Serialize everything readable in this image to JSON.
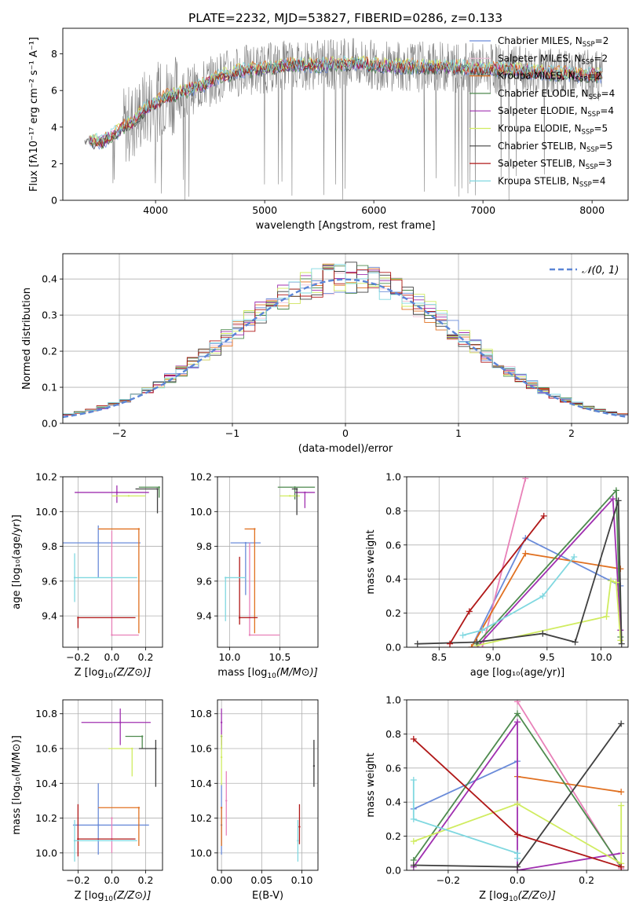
{
  "figure_title": "PLATE=2232, MJD=53827, FIBERID=0286, z=0.133",
  "colors": {
    "chabrier_miles": "#6a8bd9",
    "salpeter_miles": "#f0c1d8",
    "kroupa_miles": "#e07020",
    "chabrier_elodie": "#4e8a4e",
    "salpeter_elodie": "#a030b0",
    "kroupa_elodie": "#d0ec60",
    "chabrier_stelib": "#404040",
    "salpeter_stelib": "#b01818",
    "kroupa_stelib": "#80d8e0",
    "pink": "#e880b8",
    "gaussian": "#5b85d6",
    "data": "#808080"
  },
  "chart_data": [
    {
      "id": "spectrum",
      "type": "line",
      "title": "PLATE=2232, MJD=53827, FIBERID=0286, z=0.133",
      "xlabel": "wavelength [Angstrom, rest frame]",
      "ylabel": "Flux [fλ10⁻¹⁷ erg cm⁻² s⁻¹ A⁻¹]",
      "xlim": [
        3150,
        8330
      ],
      "ylim": [
        0,
        9.4
      ],
      "xticks": [
        4000,
        5000,
        6000,
        7000,
        8000
      ],
      "yticks": [
        0,
        2,
        4,
        6,
        8
      ],
      "grid": false,
      "legend_position": "right",
      "legend": [
        {
          "label": "Chabrier MILES, N",
          "sub": "SSP",
          "eq": "=2",
          "color": "#6a8bd9"
        },
        {
          "label": "Salpeter MILES, N",
          "sub": "SSP",
          "eq": "=2",
          "color": "#f0c1d8"
        },
        {
          "label": "Kroupa MILES, N",
          "sub": "SSP",
          "eq": "=2",
          "color": "#e07020"
        },
        {
          "label": "Chabrier ELODIE, N",
          "sub": "SSP",
          "eq": "=4",
          "color": "#4e8a4e"
        },
        {
          "label": "Salpeter ELODIE, N",
          "sub": "SSP",
          "eq": "=4",
          "color": "#a030b0"
        },
        {
          "label": "Kroupa ELODIE, N",
          "sub": "SSP",
          "eq": "=5",
          "color": "#d0ec60"
        },
        {
          "label": "Chabrier STELIB, N",
          "sub": "SSP",
          "eq": "=5",
          "color": "#404040"
        },
        {
          "label": "Salpeter STELIB, N",
          "sub": "SSP",
          "eq": "=3",
          "color": "#b01818"
        },
        {
          "label": "Kroupa STELIB, N",
          "sub": "SSP",
          "eq": "=4",
          "color": "#80d8e0"
        }
      ],
      "model_continuum": {
        "x": [
          3350,
          3500,
          3600,
          3700,
          3800,
          3900,
          4000,
          4100,
          4200,
          4300,
          4400,
          4500,
          4600,
          4800,
          5000,
          5200,
          5500,
          5800,
          6000,
          6300,
          6600,
          7000,
          7300,
          7500,
          7800,
          8000,
          8100
        ],
        "y": [
          3.3,
          3.2,
          3.5,
          4.0,
          4.3,
          5.0,
          5.3,
          5.7,
          5.8,
          6.0,
          6.2,
          6.5,
          6.8,
          7.1,
          7.2,
          7.4,
          7.4,
          7.5,
          7.4,
          7.3,
          7.3,
          7.2,
          7.1,
          7.0,
          6.9,
          6.85,
          6.8
        ]
      },
      "data_range": [
        3350,
        8100
      ]
    },
    {
      "id": "residuals",
      "type": "step",
      "xlabel": "(data-model)/error",
      "ylabel": "Normed distribution",
      "xlim": [
        -2.5,
        2.5
      ],
      "ylim": [
        0,
        0.47
      ],
      "xticks": [
        -2,
        -1,
        0,
        1,
        2
      ],
      "yticks": [
        0.0,
        0.1,
        0.2,
        0.3,
        0.4
      ],
      "grid": true,
      "legend_position": "top-right",
      "legend": [
        {
          "label": "𝒩(0, 1)",
          "style": "dashed",
          "color": "#5b85d6"
        }
      ],
      "bin_width": 0.1
    },
    {
      "id": "age_vs_z",
      "type": "errorbar",
      "xlabel_main": "Z [log",
      "xlabel_sub": "10",
      "xlabel_rest": "(Z/Z⊙)]",
      "ylabel": "age  [log₁₀(age/yr)]",
      "xlim": [
        -0.29,
        0.3
      ],
      "ylim": [
        9.22,
        10.2
      ],
      "xticks": [
        -0.2,
        0.0,
        0.2
      ],
      "yticks": [
        9.4,
        9.6,
        9.8,
        10.0,
        10.2
      ],
      "grid": true,
      "points": [
        {
          "color": "#6a8bd9",
          "x": -0.08,
          "xerr": [
            0.25,
            0.25
          ],
          "y": 9.82,
          "yerr": [
            0.2,
            0.1
          ]
        },
        {
          "color": "#e07020",
          "x": 0.16,
          "xerr": [
            0.24,
            0.0
          ],
          "y": 9.9,
          "yerr": [
            0.6,
            0.0
          ]
        },
        {
          "color": "#e880b8",
          "x": 0.0,
          "xerr": [
            0.0,
            0.16
          ],
          "y": 9.29,
          "yerr": [
            0.0,
            0.6
          ]
        },
        {
          "color": "#4e8a4e",
          "x": 0.28,
          "xerr": [
            0.12,
            0.0
          ],
          "y": 10.14,
          "yerr": [
            0.06,
            0.0
          ]
        },
        {
          "color": "#a030b0",
          "x": 0.03,
          "xerr": [
            0.25,
            0.19
          ],
          "y": 10.11,
          "yerr": [
            0.06,
            0.04
          ]
        },
        {
          "color": "#d0ec60",
          "x": 0.1,
          "xerr": [
            0.1,
            0.1
          ],
          "y": 10.09,
          "yerr": [
            0.0,
            0.0
          ]
        },
        {
          "color": "#404040",
          "x": 0.27,
          "xerr": [
            0.13,
            0.0
          ],
          "y": 10.13,
          "yerr": [
            0.14,
            0.0
          ]
        },
        {
          "color": "#b01818",
          "x": -0.2,
          "xerr": [
            0.0,
            0.34
          ],
          "y": 9.39,
          "yerr": [
            0.06,
            0.0
          ]
        },
        {
          "color": "#80d8e0",
          "x": -0.22,
          "xerr": [
            0.0,
            0.37
          ],
          "y": 9.62,
          "yerr": [
            0.14,
            0.14
          ]
        }
      ]
    },
    {
      "id": "age_vs_mass",
      "type": "errorbar",
      "xlabel_main": "mass [log",
      "xlabel_sub": "10",
      "xlabel_rest": "(M/M⊙)]",
      "xlim": [
        9.88,
        10.88
      ],
      "ylim": [
        9.22,
        10.2
      ],
      "xticks": [
        10.0,
        10.5
      ],
      "yticks": [
        9.4,
        9.6,
        9.8,
        10.0,
        10.2
      ],
      "grid": true,
      "points": [
        {
          "color": "#6a8bd9",
          "x": 10.16,
          "xerr": [
            0.15,
            0.15
          ],
          "y": 9.82,
          "yerr": [
            0.3,
            0.0
          ]
        },
        {
          "color": "#e07020",
          "x": 10.25,
          "xerr": [
            0.1,
            0.0
          ],
          "y": 9.9,
          "yerr": [
            0.6,
            0.0
          ]
        },
        {
          "color": "#e880b8",
          "x": 10.2,
          "xerr": [
            0.0,
            0.3
          ],
          "y": 9.29,
          "yerr": [
            0.0,
            0.53
          ]
        },
        {
          "color": "#4e8a4e",
          "x": 10.65,
          "xerr": [
            0.17,
            0.2
          ],
          "y": 10.14,
          "yerr": [
            0.07,
            0.0
          ]
        },
        {
          "color": "#a030b0",
          "x": 10.75,
          "xerr": [
            0.1,
            0.1
          ],
          "y": 10.11,
          "yerr": [
            0.09,
            0.0
          ]
        },
        {
          "color": "#d0ec60",
          "x": 10.6,
          "xerr": [
            0.1,
            0.1
          ],
          "y": 10.09,
          "yerr": [
            0.0,
            0.0
          ]
        },
        {
          "color": "#404040",
          "x": 10.67,
          "xerr": [
            0.05,
            0.0
          ],
          "y": 10.13,
          "yerr": [
            0.15,
            0.0
          ]
        },
        {
          "color": "#b01818",
          "x": 10.1,
          "xerr": [
            0.0,
            0.18
          ],
          "y": 9.39,
          "yerr": [
            0.04,
            0.35
          ]
        },
        {
          "color": "#80d8e0",
          "x": 9.96,
          "xerr": [
            0.0,
            0.2
          ],
          "y": 9.62,
          "yerr": [
            0.25,
            0.0
          ]
        }
      ]
    },
    {
      "id": "weight_vs_age",
      "type": "line",
      "xlabel": "age  [log₁₀(age/yr)]",
      "ylabel": "mass weight",
      "xlim": [
        8.2,
        10.25
      ],
      "ylim": [
        0,
        1
      ],
      "xticks": [
        8.5,
        9.0,
        9.5,
        10.0
      ],
      "yticks": [
        0.0,
        0.2,
        0.4,
        0.6,
        0.8,
        1.0
      ],
      "grid": true,
      "series": [
        {
          "color": "#6a8bd9",
          "x": [
            8.8,
            9.3,
            10.18
          ],
          "y": [
            0.0,
            0.64,
            0.36
          ]
        },
        {
          "color": "#e880b8",
          "x": [
            8.9,
            9.3
          ],
          "y": [
            0.0,
            0.99
          ]
        },
        {
          "color": "#e07020",
          "x": [
            8.8,
            9.3,
            10.18
          ],
          "y": [
            0.0,
            0.55,
            0.46
          ]
        },
        {
          "color": "#4e8a4e",
          "x": [
            8.85,
            10.14,
            10.18
          ],
          "y": [
            0.02,
            0.92,
            0.06
          ]
        },
        {
          "color": "#a030b0",
          "x": [
            8.85,
            10.11,
            10.18
          ],
          "y": [
            0.0,
            0.87,
            0.1
          ]
        },
        {
          "color": "#d0ec60",
          "x": [
            8.85,
            10.05,
            10.09,
            10.14,
            10.18
          ],
          "y": [
            0.01,
            0.18,
            0.39,
            0.38,
            0.04
          ]
        },
        {
          "color": "#404040",
          "x": [
            8.3,
            8.85,
            9.46,
            9.76,
            10.16,
            10.19
          ],
          "y": [
            0.02,
            0.03,
            0.08,
            0.03,
            0.86,
            0.02
          ]
        },
        {
          "color": "#b01818",
          "x": [
            8.6,
            8.78,
            9.47
          ],
          "y": [
            0.02,
            0.21,
            0.77
          ]
        },
        {
          "color": "#80d8e0",
          "x": [
            8.72,
            8.9,
            9.46,
            9.75
          ],
          "y": [
            0.07,
            0.1,
            0.3,
            0.53
          ]
        }
      ]
    },
    {
      "id": "mass_vs_z",
      "type": "errorbar",
      "xlabel_main": "Z [log",
      "xlabel_sub": "10",
      "xlabel_rest": "(Z/Z⊙)]",
      "ylabel": "mass [log₁₀(M/M⊙)]",
      "xlim": [
        -0.29,
        0.3
      ],
      "ylim": [
        9.9,
        10.88
      ],
      "xticks": [
        -0.2,
        0.0,
        0.2
      ],
      "yticks": [
        10.0,
        10.2,
        10.4,
        10.6,
        10.8
      ],
      "grid": true,
      "points": [
        {
          "color": "#6a8bd9",
          "x": -0.08,
          "xerr": [
            0.15,
            0.3
          ],
          "y": 10.16,
          "yerr": [
            0.17,
            0.24
          ]
        },
        {
          "color": "#e07020",
          "x": 0.16,
          "xerr": [
            0.24,
            0.0
          ],
          "y": 10.26,
          "yerr": [
            0.22,
            0.0
          ]
        },
        {
          "color": "#e880b8",
          "x": 0.0,
          "xerr": [
            0.0,
            0.0
          ],
          "y": 10.2,
          "yerr": [
            0.2,
            0.0
          ]
        },
        {
          "color": "#4e8a4e",
          "x": 0.18,
          "xerr": [
            0.1,
            0.0
          ],
          "y": 10.67,
          "yerr": [
            0.07,
            0.0
          ]
        },
        {
          "color": "#a030b0",
          "x": 0.05,
          "xerr": [
            0.23,
            0.18
          ],
          "y": 10.75,
          "yerr": [
            0.13,
            0.08
          ]
        },
        {
          "color": "#d0ec60",
          "x": 0.12,
          "xerr": [
            0.14,
            0.0
          ],
          "y": 10.6,
          "yerr": [
            0.16,
            0.0
          ]
        },
        {
          "color": "#404040",
          "x": 0.26,
          "xerr": [
            0.1,
            0.0
          ],
          "y": 10.6,
          "yerr": [
            0.22,
            0.05
          ]
        },
        {
          "color": "#b01818",
          "x": -0.2,
          "xerr": [
            0.0,
            0.34
          ],
          "y": 10.08,
          "yerr": [
            0.1,
            0.2
          ]
        },
        {
          "color": "#80d8e0",
          "x": -0.22,
          "xerr": [
            0.0,
            0.37
          ],
          "y": 10.07,
          "yerr": [
            0.12,
            0.12
          ]
        }
      ]
    },
    {
      "id": "mass_vs_ebv",
      "type": "errorbar",
      "xlabel": "E(B-V)",
      "xlim": [
        -0.005,
        0.12
      ],
      "ylim": [
        9.9,
        10.88
      ],
      "xticks": [
        0.0,
        0.05,
        0.1
      ],
      "xticklabels": [
        "0.00",
        "0.05",
        "0.10"
      ],
      "yticks": [
        10.0,
        10.2,
        10.4,
        10.6,
        10.8
      ],
      "grid": true,
      "points": [
        {
          "color": "#6a8bd9",
          "x": 0.0,
          "y": 10.16,
          "yerr": [
            0.17,
            0.24
          ]
        },
        {
          "color": "#e07020",
          "x": 0.0,
          "y": 10.26,
          "yerr": [
            0.22,
            0.0
          ]
        },
        {
          "color": "#e880b8",
          "x": 0.006,
          "y": 10.3,
          "yerr": [
            0.2,
            0.17
          ]
        },
        {
          "color": "#4e8a4e",
          "x": 0.0,
          "y": 10.67,
          "yerr": [
            0.07,
            0.0
          ]
        },
        {
          "color": "#a030b0",
          "x": 0.0,
          "y": 10.75,
          "yerr": [
            0.13,
            0.08
          ]
        },
        {
          "color": "#d0ec60",
          "x": 0.0,
          "y": 10.55,
          "yerr": [
            0.16,
            0.13
          ]
        },
        {
          "color": "#404040",
          "x": 0.115,
          "y": 10.5,
          "yerr": [
            0.12,
            0.15
          ]
        },
        {
          "color": "#b01818",
          "x": 0.097,
          "y": 10.15,
          "yerr": [
            0.1,
            0.13
          ]
        },
        {
          "color": "#80d8e0",
          "x": 0.095,
          "y": 10.07,
          "yerr": [
            0.12,
            0.12
          ]
        }
      ]
    },
    {
      "id": "weight_vs_z",
      "type": "line",
      "xlabel_main": "Z [log",
      "xlabel_sub": "10",
      "xlabel_rest": "(Z/Z⊙)]",
      "ylabel": "mass weight",
      "xlim": [
        -0.32,
        0.32
      ],
      "ylim": [
        0,
        1
      ],
      "xticks": [
        -0.2,
        0.0,
        0.2
      ],
      "yticks": [
        0.0,
        0.2,
        0.4,
        0.6,
        0.8,
        1.0
      ],
      "grid": true,
      "series": [
        {
          "color": "#6a8bd9",
          "x": [
            -0.3,
            0.0
          ],
          "y": [
            0.36,
            0.64
          ]
        },
        {
          "color": "#e880b8",
          "x": [
            0.0,
            0.3
          ],
          "y": [
            0.99,
            0.01
          ]
        },
        {
          "color": "#e07020",
          "x": [
            0.0,
            0.3
          ],
          "y": [
            0.55,
            0.46
          ]
        },
        {
          "color": "#4e8a4e",
          "x": [
            -0.3,
            0.0,
            0.3
          ],
          "y": [
            0.06,
            0.92,
            0.02
          ]
        },
        {
          "color": "#a030b0",
          "x": [
            -0.3,
            0.0,
            0.0,
            0.3
          ],
          "y": [
            0.02,
            0.87,
            0.0,
            0.1
          ]
        },
        {
          "color": "#d0ec60",
          "x": [
            -0.3,
            0.0,
            0.3,
            0.3
          ],
          "y": [
            0.17,
            0.39,
            0.04,
            0.38
          ]
        },
        {
          "color": "#404040",
          "x": [
            -0.3,
            0.0,
            0.3
          ],
          "y": [
            0.03,
            0.02,
            0.86
          ]
        },
        {
          "color": "#b01818",
          "x": [
            -0.3,
            0.0,
            0.3
          ],
          "y": [
            0.77,
            0.21,
            0.02
          ]
        },
        {
          "color": "#80d8e0",
          "x": [
            -0.3,
            -0.3,
            0.0,
            0.0
          ],
          "y": [
            0.53,
            0.3,
            0.1,
            0.07
          ]
        }
      ]
    }
  ]
}
